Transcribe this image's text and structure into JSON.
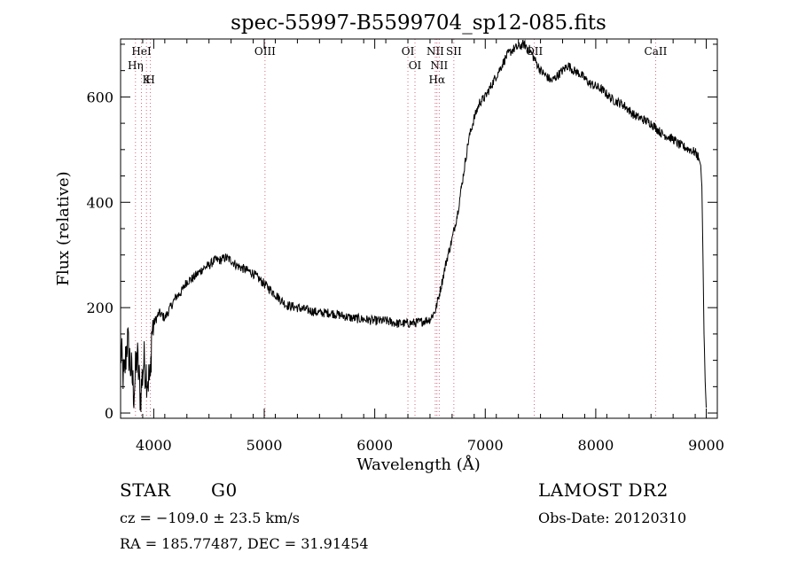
{
  "chart_data": {
    "type": "line",
    "title": "spec-55997-B5599704_sp12-085.fits",
    "xlabel": "Wavelength (Å)",
    "ylabel": "Flux (relative)",
    "xlim": [
      3700,
      9100
    ],
    "ylim": [
      -10,
      710
    ],
    "xticks": [
      4000,
      5000,
      6000,
      7000,
      8000,
      9000
    ],
    "yticks": [
      0,
      200,
      400,
      600
    ],
    "grid": false,
    "series": [
      {
        "x": [
          3700,
          3730,
          3760,
          3790,
          3820,
          3850,
          3880,
          3910,
          3940,
          3970,
          3980,
          4000,
          4050,
          4100,
          4150,
          4200,
          4250,
          4300,
          4350,
          4400,
          4450,
          4500,
          4550,
          4600,
          4650,
          4700,
          4750,
          4800,
          4850,
          4900,
          4950,
          5000,
          5050,
          5100,
          5150,
          5200,
          5300,
          5400,
          5500,
          5600,
          5700,
          5800,
          5900,
          6000,
          6100,
          6200,
          6300,
          6400,
          6500,
          6550,
          6600,
          6650,
          6700,
          6750,
          6800,
          6850,
          6900,
          6950,
          7000,
          7050,
          7100,
          7150,
          7200,
          7250,
          7300,
          7350,
          7400,
          7450,
          7500,
          7550,
          7600,
          7650,
          7700,
          7750,
          7800,
          7850,
          7900,
          7950,
          8000,
          8050,
          8100,
          8150,
          8200,
          8250,
          8300,
          8350,
          8400,
          8450,
          8500,
          8550,
          8600,
          8650,
          8700,
          8750,
          8800,
          8850,
          8900,
          8930,
          8950,
          8960,
          8970,
          8980,
          8990,
          9000
        ],
        "values": [
          120,
          60,
          140,
          90,
          40,
          110,
          30,
          100,
          70,
          60,
          150,
          170,
          190,
          180,
          200,
          220,
          230,
          250,
          255,
          265,
          275,
          280,
          290,
          290,
          295,
          290,
          280,
          275,
          270,
          265,
          255,
          245,
          235,
          225,
          215,
          205,
          200,
          195,
          190,
          190,
          185,
          180,
          178,
          175,
          175,
          170,
          170,
          172,
          178,
          195,
          240,
          290,
          330,
          380,
          450,
          520,
          560,
          590,
          600,
          620,
          640,
          660,
          680,
          690,
          695,
          700,
          690,
          670,
          650,
          640,
          630,
          640,
          650,
          660,
          650,
          645,
          635,
          625,
          620,
          615,
          605,
          595,
          590,
          585,
          575,
          565,
          560,
          555,
          550,
          540,
          530,
          525,
          520,
          510,
          505,
          500,
          495,
          485,
          470,
          430,
          300,
          150,
          60,
          10
        ]
      }
    ],
    "lines": [
      {
        "wave": 3889,
        "label": "HeI"
      },
      {
        "wave": 3835,
        "label": "Hη"
      },
      {
        "wave": 3970,
        "label": "H"
      },
      {
        "wave": 3934,
        "label": "K"
      },
      {
        "wave": 5007,
        "label": "OIII"
      },
      {
        "wave": 6300,
        "label": "OI"
      },
      {
        "wave": 6364,
        "label": "OI"
      },
      {
        "wave": 6548,
        "label": "NII"
      },
      {
        "wave": 6583,
        "label": "NII"
      },
      {
        "wave": 6563,
        "label": "Hα"
      },
      {
        "wave": 6716,
        "label": "SII"
      },
      {
        "wave": 7444,
        "label": "OII"
      },
      {
        "wave": 8542,
        "label": "CaII"
      }
    ]
  },
  "info": {
    "class": "STAR",
    "subclass": "G0",
    "survey": "LAMOST DR2",
    "cz": "cz = −109.0 ± 23.5 km/s",
    "obsdate": "Obs-Date: 20120310",
    "radec": "RA = 185.77487, DEC =  31.91454"
  }
}
